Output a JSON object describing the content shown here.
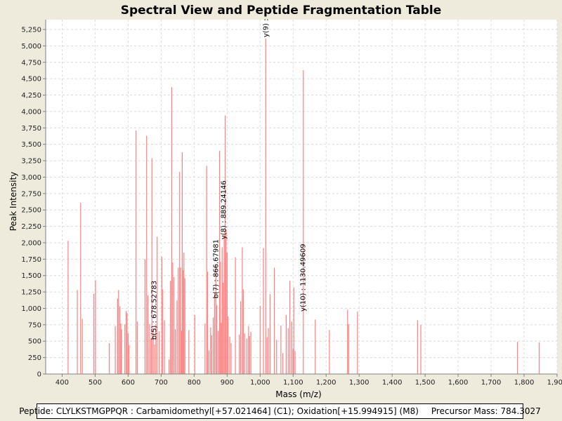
{
  "chart_data": {
    "type": "bar",
    "title": "Spectral View and Peptide Fragmentation Table",
    "xlabel": "Mass (m/z)",
    "ylabel": "Peak Intensity",
    "xlim": [
      350,
      1900
    ],
    "ylim": [
      0,
      5400
    ],
    "xticks": [
      400,
      500,
      600,
      700,
      800,
      900,
      1000,
      1100,
      1200,
      1300,
      1400,
      1500,
      1600,
      1700,
      1800,
      1900
    ],
    "xtick_labels": [
      "400",
      "500",
      "600",
      "700",
      "800",
      "900",
      "1,000",
      "1,100",
      "1,200",
      "1,300",
      "1,400",
      "1,500",
      "1,600",
      "1,700",
      "1,800",
      "1,900"
    ],
    "yticks": [
      0,
      250,
      500,
      750,
      1000,
      1250,
      1500,
      1750,
      2000,
      2250,
      2500,
      2750,
      3000,
      3250,
      3500,
      3750,
      4000,
      4250,
      4500,
      4750,
      5000,
      5250
    ],
    "ytick_labels": [
      "0",
      "250",
      "500",
      "750",
      "1,000",
      "1,250",
      "1,500",
      "1,750",
      "2,000",
      "2,250",
      "2,500",
      "2,750",
      "3,000",
      "3,250",
      "3,500",
      "3,750",
      "4,000",
      "4,250",
      "4,500",
      "4,750",
      "5,000",
      "5,250"
    ],
    "grid": true,
    "bar_color": "#ff8080",
    "peaks": [
      {
        "x": 418,
        "y": 2030
      },
      {
        "x": 446,
        "y": 1280
      },
      {
        "x": 456,
        "y": 2610
      },
      {
        "x": 461,
        "y": 840
      },
      {
        "x": 496,
        "y": 1220
      },
      {
        "x": 501,
        "y": 1430
      },
      {
        "x": 543,
        "y": 470
      },
      {
        "x": 561,
        "y": 730
      },
      {
        "x": 568,
        "y": 1150
      },
      {
        "x": 571,
        "y": 1280
      },
      {
        "x": 575,
        "y": 1030
      },
      {
        "x": 578,
        "y": 770
      },
      {
        "x": 580,
        "y": 680
      },
      {
        "x": 590,
        "y": 760
      },
      {
        "x": 594,
        "y": 960
      },
      {
        "x": 597,
        "y": 930
      },
      {
        "x": 600,
        "y": 620
      },
      {
        "x": 603,
        "y": 440
      },
      {
        "x": 624,
        "y": 3710
      },
      {
        "x": 628,
        "y": 800
      },
      {
        "x": 651,
        "y": 1750
      },
      {
        "x": 656,
        "y": 3630
      },
      {
        "x": 660,
        "y": 1200
      },
      {
        "x": 665,
        "y": 760
      },
      {
        "x": 669,
        "y": 540
      },
      {
        "x": 672,
        "y": 3290
      },
      {
        "x": 676,
        "y": 700
      },
      {
        "x": 680,
        "y": 450
      },
      {
        "x": 684,
        "y": 760
      },
      {
        "x": 688,
        "y": 2090
      },
      {
        "x": 694,
        "y": 650
      },
      {
        "x": 702,
        "y": 1790
      },
      {
        "x": 705,
        "y": 1290
      },
      {
        "x": 710,
        "y": 820
      },
      {
        "x": 724,
        "y": 220
      },
      {
        "x": 728,
        "y": 1420
      },
      {
        "x": 732,
        "y": 4370
      },
      {
        "x": 735,
        "y": 1700
      },
      {
        "x": 739,
        "y": 1480
      },
      {
        "x": 743,
        "y": 680
      },
      {
        "x": 748,
        "y": 1120
      },
      {
        "x": 752,
        "y": 1620
      },
      {
        "x": 756,
        "y": 3080
      },
      {
        "x": 759,
        "y": 1620
      },
      {
        "x": 762,
        "y": 660
      },
      {
        "x": 764,
        "y": 3380
      },
      {
        "x": 767,
        "y": 1580
      },
      {
        "x": 769,
        "y": 1850
      },
      {
        "x": 772,
        "y": 1460
      },
      {
        "x": 784,
        "y": 670
      },
      {
        "x": 802,
        "y": 900
      },
      {
        "x": 833,
        "y": 770
      },
      {
        "x": 838,
        "y": 3170
      },
      {
        "x": 841,
        "y": 1560
      },
      {
        "x": 845,
        "y": 360
      },
      {
        "x": 850,
        "y": 710
      },
      {
        "x": 853,
        "y": 590
      },
      {
        "x": 858,
        "y": 860
      },
      {
        "x": 862,
        "y": 1240
      },
      {
        "x": 866,
        "y": 1660
      },
      {
        "x": 869,
        "y": 1050
      },
      {
        "x": 873,
        "y": 660
      },
      {
        "x": 877,
        "y": 3400
      },
      {
        "x": 880,
        "y": 1710
      },
      {
        "x": 882,
        "y": 780
      },
      {
        "x": 885,
        "y": 1930
      },
      {
        "x": 888,
        "y": 1390
      },
      {
        "x": 891,
        "y": 2120
      },
      {
        "x": 894,
        "y": 3940
      },
      {
        "x": 897,
        "y": 2200
      },
      {
        "x": 900,
        "y": 1850
      },
      {
        "x": 903,
        "y": 880
      },
      {
        "x": 908,
        "y": 570
      },
      {
        "x": 912,
        "y": 470
      },
      {
        "x": 925,
        "y": 1780
      },
      {
        "x": 937,
        "y": 600
      },
      {
        "x": 941,
        "y": 1110
      },
      {
        "x": 946,
        "y": 1930
      },
      {
        "x": 949,
        "y": 1290
      },
      {
        "x": 953,
        "y": 620
      },
      {
        "x": 960,
        "y": 540
      },
      {
        "x": 965,
        "y": 730
      },
      {
        "x": 968,
        "y": 580
      },
      {
        "x": 972,
        "y": 640
      },
      {
        "x": 1000,
        "y": 1040
      },
      {
        "x": 1010,
        "y": 1920
      },
      {
        "x": 1017,
        "y": 5110
      },
      {
        "x": 1021,
        "y": 560
      },
      {
        "x": 1025,
        "y": 700
      },
      {
        "x": 1030,
        "y": 1220
      },
      {
        "x": 1043,
        "y": 1620
      },
      {
        "x": 1050,
        "y": 520
      },
      {
        "x": 1063,
        "y": 740
      },
      {
        "x": 1069,
        "y": 320
      },
      {
        "x": 1079,
        "y": 900
      },
      {
        "x": 1085,
        "y": 700
      },
      {
        "x": 1090,
        "y": 1420
      },
      {
        "x": 1096,
        "y": 800
      },
      {
        "x": 1100,
        "y": 380
      },
      {
        "x": 1102,
        "y": 1320
      },
      {
        "x": 1106,
        "y": 350
      },
      {
        "x": 1131,
        "y": 4630
      },
      {
        "x": 1167,
        "y": 830
      },
      {
        "x": 1210,
        "y": 670
      },
      {
        "x": 1265,
        "y": 980
      },
      {
        "x": 1268,
        "y": 760
      },
      {
        "x": 1295,
        "y": 950
      },
      {
        "x": 1477,
        "y": 820
      },
      {
        "x": 1487,
        "y": 750
      },
      {
        "x": 1780,
        "y": 490
      },
      {
        "x": 1846,
        "y": 480
      }
    ],
    "annotations": [
      {
        "label": "b(5) : 678.52783",
        "x": 678.52783,
        "y": 500
      },
      {
        "label": "b(7) : 866.67981",
        "x": 866.67981,
        "y": 1130
      },
      {
        "label": "y(8) : 889.24146",
        "x": 889.24146,
        "y": 2030
      },
      {
        "label": "y(9) : ",
        "x": 1017,
        "y": 5110
      },
      {
        "label": "y(10) : 1130.49609",
        "x": 1130.49609,
        "y": 930
      }
    ]
  },
  "footer": {
    "peptide": "Peptide: CLYLKSTMGPPQR : Carbamidomethyl[+57.021464] (C1); Oxidation[+15.994915] (M8)",
    "precursor": "Precursor Mass: 784.3027"
  }
}
